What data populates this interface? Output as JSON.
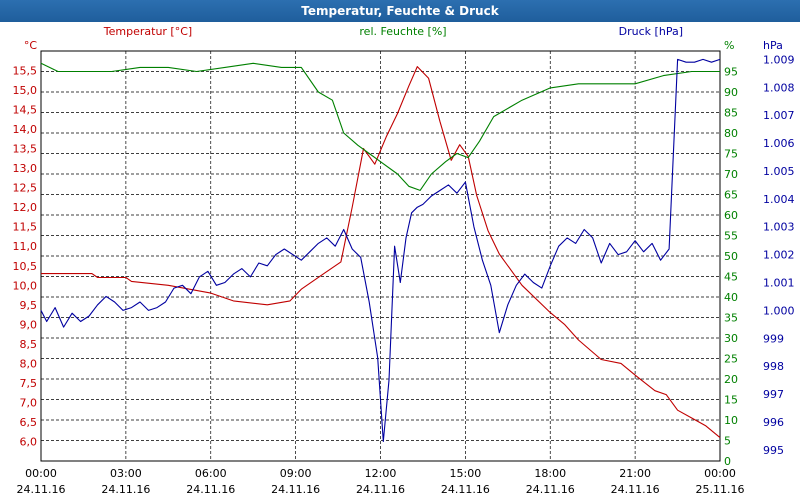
{
  "window": {
    "title": "Temperatur, Feuchte & Druck"
  },
  "chart_data": {
    "type": "line",
    "grid": true,
    "x_ticks": [
      {
        "time": "00:00",
        "date": "24.11.16"
      },
      {
        "time": "03:00",
        "date": "24.11.16"
      },
      {
        "time": "06:00",
        "date": "24.11.16"
      },
      {
        "time": "09:00",
        "date": "24.11.16"
      },
      {
        "time": "12:00",
        "date": "24.11.16"
      },
      {
        "time": "15:00",
        "date": "24.11.16"
      },
      {
        "time": "18:00",
        "date": "24.11.16"
      },
      {
        "time": "21:00",
        "date": "24.11.16"
      },
      {
        "time": "00:00",
        "date": "25.11.16"
      }
    ],
    "xlim_hours": [
      0,
      24
    ],
    "axes": {
      "temperature": {
        "header": "Temperatur [°C]",
        "unit": "°C",
        "color": "#c00000",
        "ylim": [
          5.5,
          16.0
        ],
        "ticks": [
          "6,0",
          "6,5",
          "7,0",
          "7,5",
          "8,0",
          "8,5",
          "9,0",
          "9,5",
          "10,0",
          "10,5",
          "11,0",
          "11,5",
          "12,0",
          "12,5",
          "13,0",
          "13,5",
          "14,0",
          "14,5",
          "15,0",
          "15,5"
        ]
      },
      "humidity": {
        "header": "rel. Feuchte [%]",
        "unit": "%",
        "color": "#008000",
        "ylim": [
          0,
          100
        ],
        "ticks": [
          "0",
          "5",
          "10",
          "15",
          "20",
          "25",
          "30",
          "35",
          "40",
          "45",
          "50",
          "55",
          "60",
          "65",
          "70",
          "75",
          "80",
          "85",
          "90",
          "95"
        ]
      },
      "pressure": {
        "header": "Druck [hPa]",
        "unit": "hPa",
        "color": "#0000a0",
        "ylim": [
          994.6,
          1009.3
        ],
        "ticks": [
          "995",
          "996",
          "997",
          "998",
          "999",
          "1.000",
          "1.001",
          "1.002",
          "1.003",
          "1.004",
          "1.005",
          "1.006",
          "1.007",
          "1.008",
          "1.009"
        ]
      }
    },
    "series": [
      {
        "name": "Temperatur [°C]",
        "axis": "temperature",
        "color": "#c00000",
        "x": [
          0,
          1.8,
          2.0,
          3.0,
          3.2,
          4.5,
          6.0,
          6.8,
          8.0,
          8.8,
          9.2,
          10.0,
          10.6,
          11.0,
          11.4,
          11.8,
          12.2,
          12.6,
          13.0,
          13.3,
          13.7,
          14.1,
          14.5,
          14.8,
          15.1,
          15.4,
          15.8,
          16.2,
          17.0,
          18.0,
          18.5,
          19.0,
          19.8,
          20.5,
          21.0,
          21.7,
          22.1,
          22.5,
          23.0,
          23.5,
          24.0
        ],
        "y": [
          10.3,
          10.3,
          10.2,
          10.2,
          10.1,
          10.0,
          9.8,
          9.6,
          9.5,
          9.6,
          9.9,
          10.3,
          10.6,
          12.0,
          13.5,
          13.1,
          13.8,
          14.4,
          15.1,
          15.6,
          15.3,
          14.2,
          13.2,
          13.6,
          13.3,
          12.3,
          11.4,
          10.8,
          10.0,
          9.3,
          9.0,
          8.6,
          8.1,
          8.0,
          7.7,
          7.3,
          7.2,
          6.8,
          6.6,
          6.4,
          6.1
        ]
      },
      {
        "name": "rel. Feuchte [%]",
        "axis": "humidity",
        "color": "#008000",
        "x": [
          0,
          0.6,
          1.5,
          2.5,
          3.5,
          4.5,
          5.5,
          6.5,
          7.5,
          8.5,
          9.2,
          9.8,
          10.3,
          10.7,
          11.2,
          11.6,
          12.0,
          12.6,
          13.0,
          13.4,
          13.8,
          14.3,
          14.7,
          15.1,
          15.5,
          16.0,
          17.0,
          18.0,
          19.0,
          20.0,
          21.0,
          22.0,
          23.0,
          24.0
        ],
        "y": [
          97,
          95,
          95,
          95,
          96,
          96,
          95,
          96,
          97,
          96,
          96,
          90,
          88,
          80,
          77,
          75,
          73,
          70,
          67,
          66,
          70,
          73,
          75,
          74,
          78,
          84,
          88,
          91,
          92,
          92,
          92,
          94,
          95,
          95
        ]
      },
      {
        "name": "Druck [hPa]",
        "axis": "pressure",
        "color": "#0000a0",
        "x": [
          0,
          0.2,
          0.5,
          0.8,
          1.1,
          1.4,
          1.7,
          2.0,
          2.3,
          2.6,
          2.9,
          3.2,
          3.5,
          3.8,
          4.1,
          4.4,
          4.7,
          5.0,
          5.3,
          5.6,
          5.9,
          6.2,
          6.5,
          6.8,
          7.1,
          7.4,
          7.7,
          8.0,
          8.3,
          8.6,
          8.9,
          9.2,
          9.5,
          9.8,
          10.1,
          10.4,
          10.7,
          11.0,
          11.3,
          11.6,
          11.9,
          12.1,
          12.3,
          12.5,
          12.7,
          12.9,
          13.1,
          13.3,
          13.5,
          13.8,
          14.1,
          14.4,
          14.7,
          15.0,
          15.3,
          15.6,
          15.9,
          16.2,
          16.5,
          16.8,
          17.1,
          17.4,
          17.7,
          18.0,
          18.3,
          18.6,
          18.9,
          19.2,
          19.5,
          19.8,
          20.1,
          20.4,
          20.7,
          21.0,
          21.3,
          21.6,
          21.9,
          22.2,
          22.5,
          22.8,
          23.1,
          23.4,
          23.7,
          24.0
        ],
        "y": [
          1000.0,
          999.6,
          1000.1,
          999.4,
          999.9,
          999.6,
          999.8,
          1000.2,
          1000.5,
          1000.3,
          1000.0,
          1000.1,
          1000.3,
          1000.0,
          1000.1,
          1000.3,
          1000.8,
          1000.9,
          1000.6,
          1001.2,
          1001.4,
          1000.9,
          1001.0,
          1001.3,
          1001.5,
          1001.2,
          1001.7,
          1001.6,
          1002.0,
          1002.2,
          1002.0,
          1001.8,
          1002.1,
          1002.4,
          1002.6,
          1002.3,
          1002.9,
          1002.2,
          1001.9,
          1000.3,
          998.3,
          995.3,
          997.5,
          1002.3,
          1001.0,
          1002.6,
          1003.5,
          1003.7,
          1003.8,
          1004.1,
          1004.3,
          1004.5,
          1004.2,
          1004.6,
          1003.0,
          1001.8,
          1000.9,
          999.2,
          1000.2,
          1000.9,
          1001.3,
          1001.0,
          1000.8,
          1001.6,
          1002.3,
          1002.6,
          1002.4,
          1002.9,
          1002.6,
          1001.7,
          1002.4,
          1002.0,
          1002.1,
          1002.5,
          1002.1,
          1002.4,
          1001.8,
          1002.2,
          1009.0,
          1008.9,
          1008.9,
          1009.0,
          1008.9,
          1009.0
        ]
      }
    ]
  }
}
